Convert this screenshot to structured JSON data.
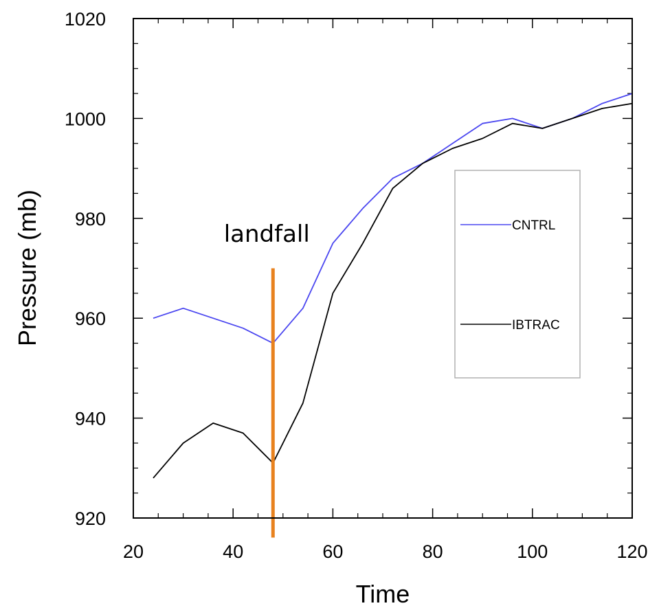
{
  "chart_data": {
    "type": "line",
    "xlabel": "Time",
    "ylabel": "Pressure (mb)",
    "xlim": [
      20,
      120
    ],
    "ylim": [
      920,
      1020
    ],
    "x_ticks": [
      20,
      40,
      60,
      80,
      100,
      120
    ],
    "y_ticks": [
      920,
      940,
      960,
      980,
      1000,
      1020
    ],
    "grid": false,
    "legend_position": "right",
    "series": [
      {
        "name": "CNTRL",
        "color": "#4a46f0",
        "x": [
          24,
          30,
          36,
          42,
          48,
          54,
          60,
          66,
          72,
          78,
          84,
          90,
          96,
          102,
          108,
          114,
          120
        ],
        "y": [
          960,
          962,
          960,
          958,
          955,
          962,
          975,
          982,
          988,
          991,
          995,
          999,
          1000,
          998,
          1000,
          1003,
          1005
        ]
      },
      {
        "name": "IBTRAC",
        "color": "#000000",
        "x": [
          24,
          30,
          36,
          42,
          48,
          54,
          60,
          66,
          72,
          78,
          84,
          90,
          96,
          102,
          108,
          114,
          120
        ],
        "y": [
          928,
          935,
          939,
          937,
          931,
          943,
          965,
          975,
          986,
          991,
          994,
          996,
          999,
          998,
          1000,
          1002,
          1003
        ]
      }
    ],
    "annotations": [
      {
        "text": "landfall",
        "x": 48,
        "y_range": [
          918,
          970
        ],
        "color": "#e8821e"
      }
    ]
  }
}
